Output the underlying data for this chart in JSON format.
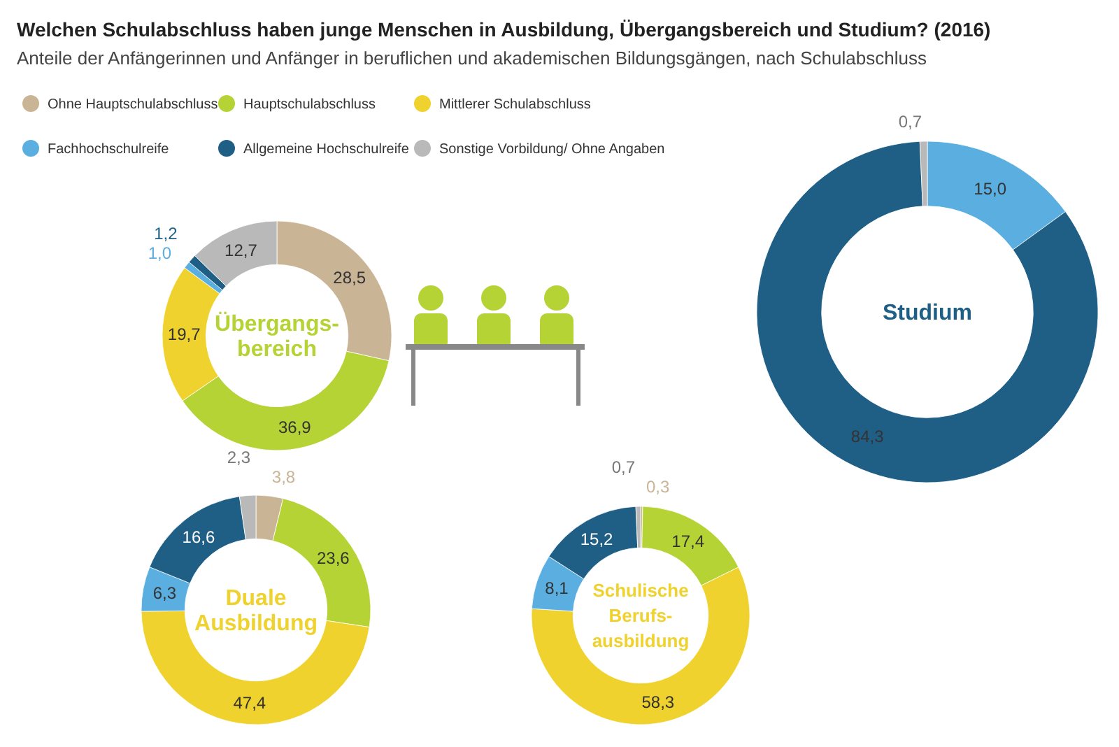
{
  "chart_data": [
    {
      "type": "donut",
      "title": "Welchen Schulabschluss haben junge Menschen in Ausbildung, Übergangsbereich und Studium? (2016)",
      "subtitle": "Anteile der Anfängerinnen und Anfänger in beruflichen und akademischen Bildungsgängen, nach Schulabschluss",
      "legend": "top",
      "annotations": [
        "Übergangs-bereich"
      ],
      "categories": [
        "Ohne Hauptschulabschluss",
        "Hauptschulabschluss",
        "Mittlerer Schulabschluss",
        "Fachhochschulreife",
        "Allgemeine Hochschulreife",
        "Sonstige Vorbildung/ Ohne Angaben"
      ],
      "values": [
        28.5,
        36.9,
        19.7,
        1.0,
        1.2,
        12.7
      ],
      "value_labels": [
        "28,5",
        "36,9",
        "19,7",
        "1,0",
        "1,2",
        "12,7"
      ],
      "colors": [
        "#c9b596",
        "#b5d334",
        "#f0d22e",
        "#5aaee0",
        "#1f5f86",
        "#b9b9b9"
      ]
    },
    {
      "type": "donut",
      "annotations": [
        "Studium"
      ],
      "values": [
        15.0,
        84.3,
        0.7
      ],
      "value_labels": [
        "15,0",
        "84,3",
        "0,7"
      ],
      "colors": [
        "#5aaee0",
        "#1f5f86",
        "#b9b9b9"
      ]
    },
    {
      "type": "donut",
      "annotations": [
        "Duale Ausbildung"
      ],
      "values": [
        3.8,
        23.6,
        47.4,
        6.3,
        16.6,
        2.3
      ],
      "value_labels": [
        "3,8",
        "23,6",
        "47,4",
        "6,3",
        "16,6",
        "2,3"
      ],
      "colors": [
        "#c9b596",
        "#b5d334",
        "#f0d22e",
        "#5aaee0",
        "#1f5f86",
        "#b9b9b9"
      ]
    },
    {
      "type": "donut",
      "annotations": [
        "Schulische Berufs-ausbildung"
      ],
      "values": [
        0.3,
        17.4,
        58.3,
        8.1,
        15.2,
        0.7
      ],
      "value_labels": [
        "0,3",
        "17,4",
        "58,3",
        "8,1",
        "15,2",
        "0,7"
      ],
      "colors": [
        "#c9b596",
        "#b5d334",
        "#f0d22e",
        "#5aaee0",
        "#1f5f86",
        "#b9b9b9"
      ]
    }
  ]
}
